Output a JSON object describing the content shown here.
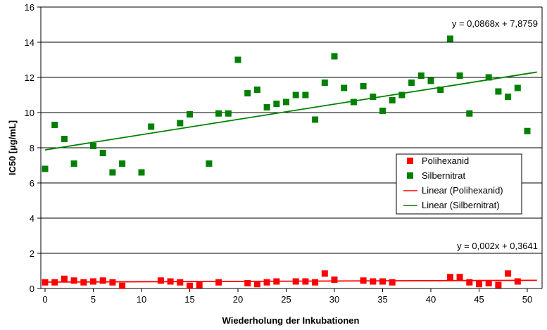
{
  "chart_data": {
    "type": "scatter",
    "xlabel": "Wiederholung der Inkubationen",
    "ylabel": "IC50 [µg/mL]",
    "xlim": [
      0,
      51
    ],
    "ylim": [
      0,
      16
    ],
    "x_ticks": [
      "0",
      "5",
      "10",
      "15",
      "20",
      "25",
      "30",
      "35",
      "40",
      "45",
      "50"
    ],
    "y_ticks": [
      "0",
      "2",
      "4",
      "6",
      "8",
      "10",
      "12",
      "14",
      "16"
    ],
    "grid": "horizontal",
    "legend_position": "right",
    "series": [
      {
        "name": "Polihexanid",
        "color": "#ff0000",
        "marker": "square",
        "points": [
          [
            0,
            0.35
          ],
          [
            1,
            0.35
          ],
          [
            2,
            0.55
          ],
          [
            3,
            0.45
          ],
          [
            4,
            0.35
          ],
          [
            5,
            0.4
          ],
          [
            6,
            0.45
          ],
          [
            7,
            0.35
          ],
          [
            8,
            0.15
          ],
          [
            12,
            0.45
          ],
          [
            13,
            0.4
          ],
          [
            14,
            0.35
          ],
          [
            15,
            0.15
          ],
          [
            16,
            0.2
          ],
          [
            18,
            0.35
          ],
          [
            21,
            0.3
          ],
          [
            22,
            0.25
          ],
          [
            23,
            0.35
          ],
          [
            24,
            0.4
          ],
          [
            26,
            0.4
          ],
          [
            27,
            0.4
          ],
          [
            28,
            0.35
          ],
          [
            29,
            0.85
          ],
          [
            30,
            0.5
          ],
          [
            33,
            0.45
          ],
          [
            34,
            0.4
          ],
          [
            35,
            0.4
          ],
          [
            36,
            0.35
          ],
          [
            42,
            0.65
          ],
          [
            43,
            0.65
          ],
          [
            44,
            0.35
          ],
          [
            45,
            0.25
          ],
          [
            46,
            0.3
          ],
          [
            47,
            0.2
          ],
          [
            48,
            0.85
          ],
          [
            49,
            0.4
          ]
        ]
      },
      {
        "name": "Silbernitrat",
        "color": "#008000",
        "marker": "square",
        "points": [
          [
            0,
            6.8
          ],
          [
            1,
            9.3
          ],
          [
            2,
            8.5
          ],
          [
            3,
            7.1
          ],
          [
            5,
            8.1
          ],
          [
            6,
            7.7
          ],
          [
            7,
            6.6
          ],
          [
            8,
            7.1
          ],
          [
            10,
            6.6
          ],
          [
            11,
            9.2
          ],
          [
            14,
            9.4
          ],
          [
            15,
            9.9
          ],
          [
            17,
            7.1
          ],
          [
            18,
            9.95
          ],
          [
            19,
            9.95
          ],
          [
            20,
            13.0
          ],
          [
            21,
            11.1
          ],
          [
            22,
            11.3
          ],
          [
            23,
            10.3
          ],
          [
            24,
            10.5
          ],
          [
            25,
            10.6
          ],
          [
            26,
            11.0
          ],
          [
            27,
            11.0
          ],
          [
            28,
            9.6
          ],
          [
            29,
            11.7
          ],
          [
            30,
            13.2
          ],
          [
            31,
            11.4
          ],
          [
            32,
            10.6
          ],
          [
            33,
            11.5
          ],
          [
            34,
            10.9
          ],
          [
            35,
            10.1
          ],
          [
            36,
            10.7
          ],
          [
            37,
            11.0
          ],
          [
            38,
            11.7
          ],
          [
            39,
            12.1
          ],
          [
            40,
            11.8
          ],
          [
            41,
            11.3
          ],
          [
            42,
            14.2
          ],
          [
            43,
            12.1
          ],
          [
            44,
            9.95
          ],
          [
            46,
            12.0
          ],
          [
            47,
            11.2
          ],
          [
            48,
            10.9
          ],
          [
            49,
            11.4
          ],
          [
            50,
            8.95
          ]
        ]
      }
    ],
    "trendlines": [
      {
        "name": "Linear (Polihexanid)",
        "color": "#ff0000",
        "slope": 0.002,
        "intercept": 0.3641,
        "equation": "y = 0,002x + 0,3641"
      },
      {
        "name": "Linear (Silbernitrat)",
        "color": "#008000",
        "slope": 0.0868,
        "intercept": 7.8759,
        "equation": "y = 0,0868x + 7,8759"
      }
    ]
  }
}
